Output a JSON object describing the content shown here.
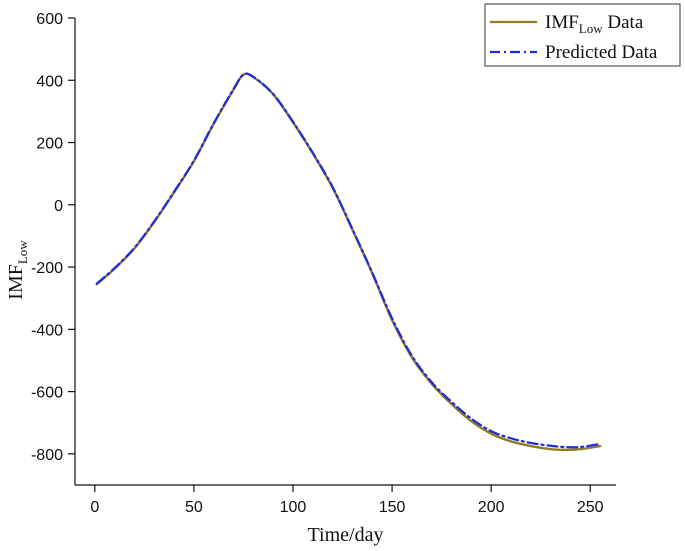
{
  "chart_data": {
    "type": "line",
    "title": "",
    "xlabel": "Time/day",
    "ylabel": {
      "main": "IMF",
      "sub": "Low"
    },
    "xlim": [
      -10,
      263
    ],
    "ylim": [
      -900,
      600
    ],
    "x_ticks": [
      0,
      50,
      100,
      150,
      200,
      250
    ],
    "y_ticks": [
      -800,
      -600,
      -400,
      -200,
      0,
      200,
      400,
      600
    ],
    "grid": false,
    "legend_position": "top-right",
    "series": [
      {
        "name": "IMF_Low Data",
        "legend_main": "IMF",
        "legend_sub": "Low",
        "legend_suffix": " Data",
        "color": "#8f7d1e",
        "style": "solid",
        "x": [
          1,
          10,
          20,
          30,
          40,
          50,
          60,
          70,
          75,
          80,
          90,
          100,
          110,
          120,
          130,
          140,
          150,
          160,
          170,
          180,
          190,
          200,
          210,
          220,
          230,
          237,
          245,
          255
        ],
        "y": [
          -255,
          -205,
          -140,
          -55,
          40,
          140,
          260,
          370,
          418,
          410,
          355,
          265,
          165,
          55,
          -80,
          -220,
          -370,
          -490,
          -575,
          -640,
          -695,
          -735,
          -760,
          -775,
          -785,
          -787,
          -785,
          -775
        ]
      },
      {
        "name": "Predicted Data",
        "legend_main": "Predicted Data",
        "legend_sub": "",
        "legend_suffix": "",
        "color": "#1f2be0",
        "style": "dashdot",
        "x": [
          1,
          10,
          20,
          30,
          40,
          50,
          60,
          70,
          75,
          80,
          90,
          100,
          110,
          120,
          130,
          140,
          150,
          160,
          170,
          180,
          190,
          200,
          210,
          220,
          230,
          237,
          245,
          255
        ],
        "y": [
          -253,
          -203,
          -138,
          -53,
          42,
          142,
          262,
          372,
          418,
          411,
          356,
          267,
          167,
          57,
          -78,
          -218,
          -365,
          -485,
          -570,
          -633,
          -687,
          -727,
          -750,
          -765,
          -774,
          -778,
          -778,
          -768
        ]
      }
    ]
  }
}
